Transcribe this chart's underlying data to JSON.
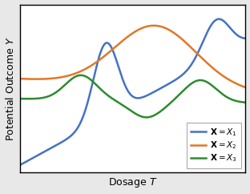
{
  "title": "",
  "xlabel": "Dosage $T$",
  "ylabel": "Potential Outcome $Y$",
  "background_color": "#e8e8e8",
  "plot_bg_color": "#ffffff",
  "line1_color": "#4472c4",
  "line2_color": "#e07828",
  "line3_color": "#2e8b2e",
  "linewidth": 1.8,
  "figsize": [
    3.12,
    2.42
  ],
  "dpi": 100,
  "legend_loc": "lower right"
}
